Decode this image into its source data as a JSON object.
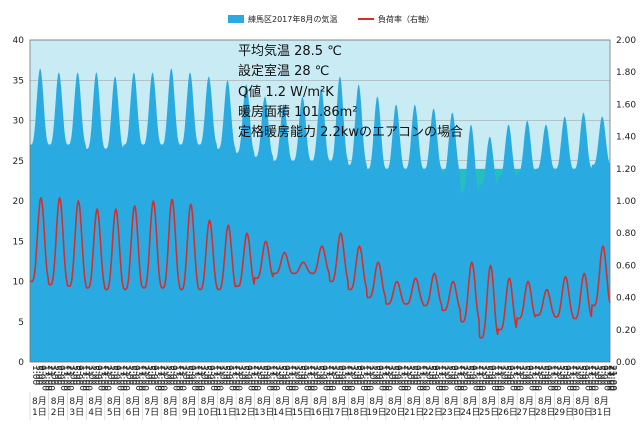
{
  "chart_data": {
    "type": "area",
    "legend": {
      "placement": "top",
      "area_label": "練馬区2017年8月の気温",
      "line_label": "負荷率（右軸）"
    },
    "annotations": [
      "平均気温  28.5 ℃",
      "設定室温  28   ℃",
      "Q値     1.2  W/m²K",
      "暖房面積   101.86m²",
      "定格暖房能力  2.2kwのエアコンの場合"
    ],
    "y_left": {
      "min": 0,
      "max": 40,
      "step": 5,
      "ticks": [
        "0",
        "5",
        "10",
        "15",
        "20",
        "25",
        "30",
        "35",
        "40"
      ]
    },
    "y_right": {
      "min": 0,
      "max": 2.0,
      "step": 0.2,
      "ticks": [
        "0.00",
        "0.20",
        "0.40",
        "0.60",
        "0.80",
        "1.00",
        "1.20",
        "1.40",
        "1.60",
        "1.80",
        "2.00"
      ]
    },
    "bands": [
      {
        "name": "band-upper",
        "from": 24,
        "to": 40,
        "color": "#c9ecf4"
      },
      {
        "name": "band-comfort",
        "from": 12,
        "to": 24,
        "color": "#26bfbf"
      }
    ],
    "x_time_labels": [
      "1:00",
      "5:00",
      "9:00",
      "13:00",
      "17:00",
      "21:00"
    ],
    "x_month_label": "8月",
    "x_days": [
      "1日",
      "2日",
      "3日",
      "4日",
      "5日",
      "6日",
      "7日",
      "8日",
      "9日",
      "10日",
      "11日",
      "12日",
      "13日",
      "14日",
      "15日",
      "16日",
      "17日",
      "18日",
      "19日",
      "20日",
      "21日",
      "22日",
      "23日",
      "24日",
      "25日",
      "26日",
      "27日",
      "28日",
      "29日",
      "30日",
      "31日"
    ],
    "x_last_label": "23:00",
    "series": [
      {
        "name": "練馬区2017年8月の気温",
        "axis": "left",
        "color": "#29abe2",
        "daily_min": [
          27,
          27,
          27,
          26.5,
          26.5,
          27,
          27,
          27,
          27,
          27,
          26.5,
          26,
          25.5,
          25,
          25,
          25,
          25,
          24.5,
          24,
          24,
          24,
          24,
          23.5,
          21,
          22,
          23,
          23.5,
          24,
          24,
          24,
          24.5
        ],
        "daily_max": [
          36.5,
          36,
          36,
          36,
          35.5,
          36,
          36,
          36.5,
          36,
          35.5,
          35,
          34.5,
          33,
          32,
          33,
          34,
          35.5,
          34.5,
          33,
          32,
          32,
          31.5,
          31,
          29.5,
          28,
          29.5,
          30,
          29.5,
          30.5,
          31,
          30.5
        ]
      },
      {
        "name": "負荷率（右軸）",
        "axis": "right",
        "color": "#d32f2f",
        "daily_min": [
          0.5,
          0.48,
          0.47,
          0.46,
          0.45,
          0.45,
          0.46,
          0.46,
          0.45,
          0.45,
          0.45,
          0.47,
          0.52,
          0.55,
          0.55,
          0.55,
          0.5,
          0.45,
          0.4,
          0.36,
          0.36,
          0.35,
          0.32,
          0.25,
          0.15,
          0.2,
          0.27,
          0.29,
          0.28,
          0.27,
          0.35
        ],
        "daily_max": [
          1.02,
          1.02,
          1.0,
          0.95,
          0.95,
          0.97,
          1.0,
          1.01,
          0.98,
          0.88,
          0.85,
          0.8,
          0.75,
          0.68,
          0.62,
          0.72,
          0.8,
          0.72,
          0.62,
          0.5,
          0.52,
          0.55,
          0.5,
          0.62,
          0.6,
          0.52,
          0.5,
          0.45,
          0.53,
          0.55,
          0.72
        ]
      }
    ]
  }
}
